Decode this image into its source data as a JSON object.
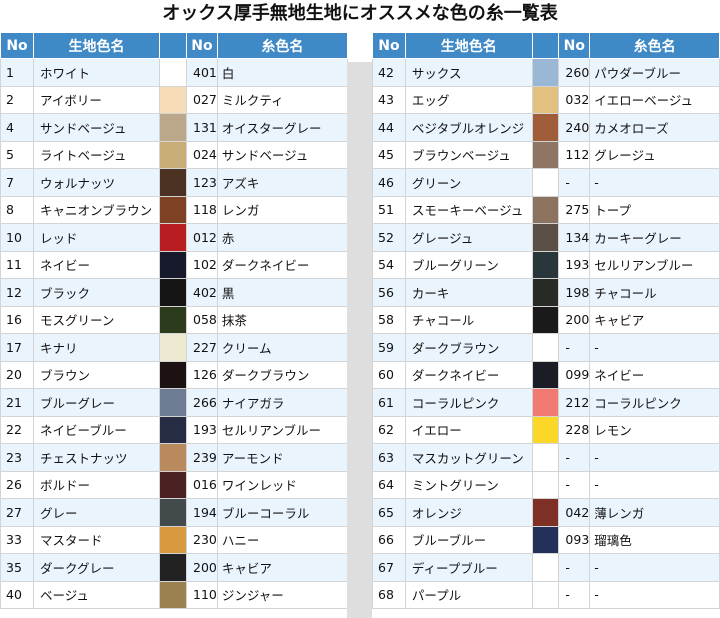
{
  "title": "オックス厚手無地生地にオススメな色の糸一覧表",
  "headers": {
    "no": "No",
    "fabric": "生地色名",
    "thread_no": "No",
    "thread": "糸色名"
  },
  "left_rows": [
    {
      "no": "1",
      "fabric": "ホワイト",
      "swatch": "#ffffff",
      "tno": "401",
      "thread": "白"
    },
    {
      "no": "2",
      "fabric": "アイボリー",
      "swatch": "#f7dcb8",
      "tno": "027",
      "thread": "ミルクティ"
    },
    {
      "no": "4",
      "fabric": "サンドベージュ",
      "swatch": "#bba78a",
      "tno": "131",
      "thread": "オイスターグレー"
    },
    {
      "no": "5",
      "fabric": "ライトベージュ",
      "swatch": "#c9ad78",
      "tno": "024",
      "thread": "サンドベージュ"
    },
    {
      "no": "7",
      "fabric": "ウォルナッツ",
      "swatch": "#4b3223",
      "tno": "123",
      "thread": "アズキ"
    },
    {
      "no": "8",
      "fabric": "キャニオンブラウン",
      "swatch": "#7e4124",
      "tno": "118",
      "thread": "レンガ"
    },
    {
      "no": "10",
      "fabric": "レッド",
      "swatch": "#b81d21",
      "tno": "012",
      "thread": "赤"
    },
    {
      "no": "11",
      "fabric": "ネイビー",
      "swatch": "#161a2b",
      "tno": "102",
      "thread": "ダークネイビー"
    },
    {
      "no": "12",
      "fabric": "ブラック",
      "swatch": "#151515",
      "tno": "402",
      "thread": "黒"
    },
    {
      "no": "16",
      "fabric": "モスグリーン",
      "swatch": "#2c3b1c",
      "tno": "058",
      "thread": "抹茶"
    },
    {
      "no": "17",
      "fabric": "キナリ",
      "swatch": "#eeead2",
      "tno": "227",
      "thread": "クリーム"
    },
    {
      "no": "20",
      "fabric": "ブラウン",
      "swatch": "#1c1212",
      "tno": "126",
      "thread": "ダークブラウン"
    },
    {
      "no": "21",
      "fabric": "ブルーグレー",
      "swatch": "#6f7d94",
      "tno": "266",
      "thread": "ナイアガラ"
    },
    {
      "no": "22",
      "fabric": "ネイビーブルー",
      "swatch": "#252c44",
      "tno": "193",
      "thread": "セルリアンブルー"
    },
    {
      "no": "23",
      "fabric": "チェストナッツ",
      "swatch": "#b98a5e",
      "tno": "239",
      "thread": "アーモンド"
    },
    {
      "no": "26",
      "fabric": "ボルドー",
      "swatch": "#4a2222",
      "tno": "016",
      "thread": "ワインレッド"
    },
    {
      "no": "27",
      "fabric": "グレー",
      "swatch": "#424a4c",
      "tno": "194",
      "thread": "ブルーコーラル"
    },
    {
      "no": "33",
      "fabric": "マスタード",
      "swatch": "#d89a3e",
      "tno": "230",
      "thread": "ハニー"
    },
    {
      "no": "35",
      "fabric": "ダークグレー",
      "swatch": "#222222",
      "tno": "200",
      "thread": "キャビア"
    },
    {
      "no": "40",
      "fabric": "ベージュ",
      "swatch": "#9c8150",
      "tno": "110",
      "thread": "ジンジャー"
    }
  ],
  "right_rows": [
    {
      "no": "42",
      "fabric": "サックス",
      "swatch": "#9ab8d6",
      "tno": "260",
      "thread": "パウダーブルー"
    },
    {
      "no": "43",
      "fabric": "エッグ",
      "swatch": "#e1c082",
      "tno": "032",
      "thread": "イエローベージュ"
    },
    {
      "no": "44",
      "fabric": "ベジタブルオレンジ",
      "swatch": "#a05d3a",
      "tno": "240",
      "thread": "カメオローズ"
    },
    {
      "no": "45",
      "fabric": "ブラウンベージュ",
      "swatch": "#8e7564",
      "tno": "112",
      "thread": "グレージュ"
    },
    {
      "no": "46",
      "fabric": "グリーン",
      "swatch": "",
      "tno": "-",
      "thread": "-"
    },
    {
      "no": "51",
      "fabric": "スモーキーベージュ",
      "swatch": "#8c735f",
      "tno": "275",
      "thread": "トープ"
    },
    {
      "no": "52",
      "fabric": "グレージュ",
      "swatch": "#5a5047",
      "tno": "134",
      "thread": "カーキーグレー"
    },
    {
      "no": "54",
      "fabric": "ブルーグリーン",
      "swatch": "#29363a",
      "tno": "193",
      "thread": "セルリアンブルー"
    },
    {
      "no": "56",
      "fabric": "カーキ",
      "swatch": "#282a25",
      "tno": "198",
      "thread": "チャコール"
    },
    {
      "no": "58",
      "fabric": "チャコール",
      "swatch": "#1a1a1a",
      "tno": "200",
      "thread": "キャビア"
    },
    {
      "no": "59",
      "fabric": "ダークブラウン",
      "swatch": "",
      "tno": "-",
      "thread": "-"
    },
    {
      "no": "60",
      "fabric": "ダークネイビー",
      "swatch": "#1a1c26",
      "tno": "099",
      "thread": "ネイビー"
    },
    {
      "no": "61",
      "fabric": "コーラルピンク",
      "swatch": "#f17a72",
      "tno": "212",
      "thread": "コーラルピンク"
    },
    {
      "no": "62",
      "fabric": "イエロー",
      "swatch": "#fbd728",
      "tno": "228",
      "thread": "レモン"
    },
    {
      "no": "63",
      "fabric": "マスカットグリーン",
      "swatch": "",
      "tno": "-",
      "thread": "-"
    },
    {
      "no": "64",
      "fabric": "ミントグリーン",
      "swatch": "",
      "tno": "-",
      "thread": "-"
    },
    {
      "no": "65",
      "fabric": "オレンジ",
      "swatch": "#7f3026",
      "tno": "042",
      "thread": "薄レンガ"
    },
    {
      "no": "66",
      "fabric": "ブルーブルー",
      "swatch": "#23305a",
      "tno": "093",
      "thread": "瑠璃色"
    },
    {
      "no": "67",
      "fabric": "ディープブルー",
      "swatch": "",
      "tno": "-",
      "thread": "-"
    },
    {
      "no": "68",
      "fabric": "パープル",
      "swatch": "",
      "tno": "-",
      "thread": "-"
    }
  ],
  "colors": {
    "header_bg": "#3f89c7",
    "row_alt": "#eaf4fc",
    "gap": "#dedede"
  }
}
